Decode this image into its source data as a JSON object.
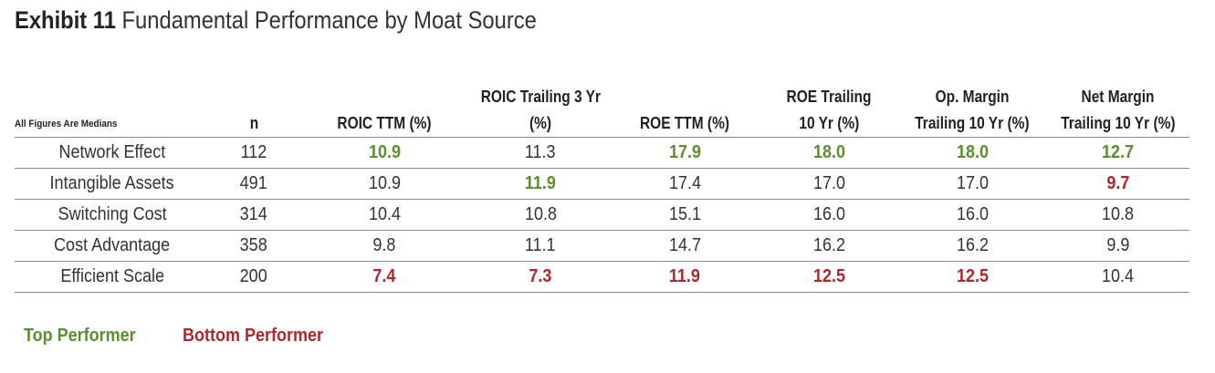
{
  "exhibit": {
    "label": "Exhibit 11",
    "title": "Fundamental Performance by Moat Source"
  },
  "table": {
    "corner_label": "All Figures Are Medians",
    "columns": [
      {
        "key": "n",
        "lines": [
          "n"
        ]
      },
      {
        "key": "roic_ttm",
        "lines": [
          "ROIC TTM (%)"
        ]
      },
      {
        "key": "roic_3yr",
        "lines": [
          "ROIC Trailing 3 Yr",
          "(%)"
        ]
      },
      {
        "key": "roe_ttm",
        "lines": [
          "ROE TTM (%)"
        ]
      },
      {
        "key": "roe_10yr",
        "lines": [
          "ROE Trailing",
          "10 Yr (%)"
        ]
      },
      {
        "key": "op_margin_10yr",
        "lines": [
          "Op. Margin",
          "Trailing 10 Yr (%)"
        ]
      },
      {
        "key": "net_margin_10yr",
        "lines": [
          "Net Margin",
          "Trailing 10 Yr (%)"
        ]
      }
    ],
    "rows": [
      {
        "label": "Network Effect",
        "cells": [
          {
            "value": "112",
            "status": ""
          },
          {
            "value": "10.9",
            "status": "top"
          },
          {
            "value": "11.3",
            "status": ""
          },
          {
            "value": "17.9",
            "status": "top"
          },
          {
            "value": "18.0",
            "status": "top"
          },
          {
            "value": "18.0",
            "status": "top"
          },
          {
            "value": "12.7",
            "status": "top"
          }
        ]
      },
      {
        "label": "Intangible Assets",
        "cells": [
          {
            "value": "491",
            "status": ""
          },
          {
            "value": "10.9",
            "status": ""
          },
          {
            "value": "11.9",
            "status": "top"
          },
          {
            "value": "17.4",
            "status": ""
          },
          {
            "value": "17.0",
            "status": ""
          },
          {
            "value": "17.0",
            "status": ""
          },
          {
            "value": "9.7",
            "status": "bottom"
          }
        ]
      },
      {
        "label": "Switching Cost",
        "cells": [
          {
            "value": "314",
            "status": ""
          },
          {
            "value": "10.4",
            "status": ""
          },
          {
            "value": "10.8",
            "status": ""
          },
          {
            "value": "15.1",
            "status": ""
          },
          {
            "value": "16.0",
            "status": ""
          },
          {
            "value": "16.0",
            "status": ""
          },
          {
            "value": "10.8",
            "status": ""
          }
        ]
      },
      {
        "label": "Cost Advantage",
        "cells": [
          {
            "value": "358",
            "status": ""
          },
          {
            "value": "9.8",
            "status": ""
          },
          {
            "value": "11.1",
            "status": ""
          },
          {
            "value": "14.7",
            "status": ""
          },
          {
            "value": "16.2",
            "status": ""
          },
          {
            "value": "16.2",
            "status": ""
          },
          {
            "value": "9.9",
            "status": ""
          }
        ]
      },
      {
        "label": "Efficient Scale",
        "cells": [
          {
            "value": "200",
            "status": ""
          },
          {
            "value": "7.4",
            "status": "bottom"
          },
          {
            "value": "7.3",
            "status": "bottom"
          },
          {
            "value": "11.9",
            "status": "bottom"
          },
          {
            "value": "12.5",
            "status": "bottom"
          },
          {
            "value": "12.5",
            "status": "bottom"
          },
          {
            "value": "10.4",
            "status": ""
          }
        ]
      }
    ]
  },
  "legend": {
    "top_label": "Top Performer",
    "bottom_label": "Bottom Performer"
  },
  "colors": {
    "top_performer": "#5a8f32",
    "bottom_performer": "#b1262a",
    "rule": "#8a8a8a"
  }
}
